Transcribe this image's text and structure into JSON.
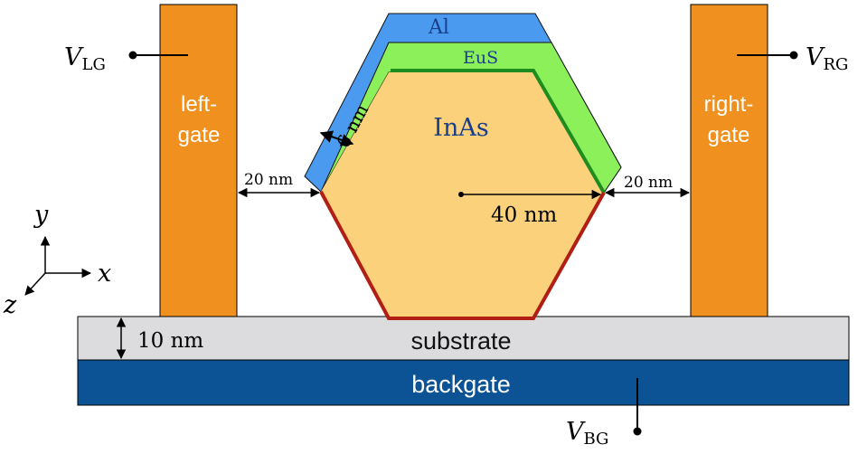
{
  "gates": {
    "left_label_line1": "left-",
    "left_label_line2": "gate",
    "right_label_line1": "right-",
    "right_label_line2": "gate",
    "left_voltage_main": "V",
    "left_voltage_sub": "LG",
    "right_voltage_main": "V",
    "right_voltage_sub": "RG",
    "back_voltage_main": "V",
    "back_voltage_sub": "BG"
  },
  "layers": {
    "substrate": "substrate",
    "backgate": "backgate",
    "core": "InAs",
    "shell_outer": "Al",
    "shell_inner": "EuS"
  },
  "dimensions": {
    "shell_thickness": "6 nm",
    "left_gap": "20 nm",
    "right_gap": "20 nm",
    "radius": "40 nm",
    "substrate_thickness": "10 nm"
  },
  "axes": {
    "x": "x",
    "y": "y",
    "z": "z"
  },
  "colors": {
    "gate": "#F0901E",
    "inas": "#FCD17C",
    "eus": "#8CF05A",
    "eus_edge": "#1E8C1E",
    "al": "#4A9BEF",
    "substrate": "#DCDCDE",
    "backgate": "#0B5394",
    "bottom_edge": "#B01E14"
  }
}
